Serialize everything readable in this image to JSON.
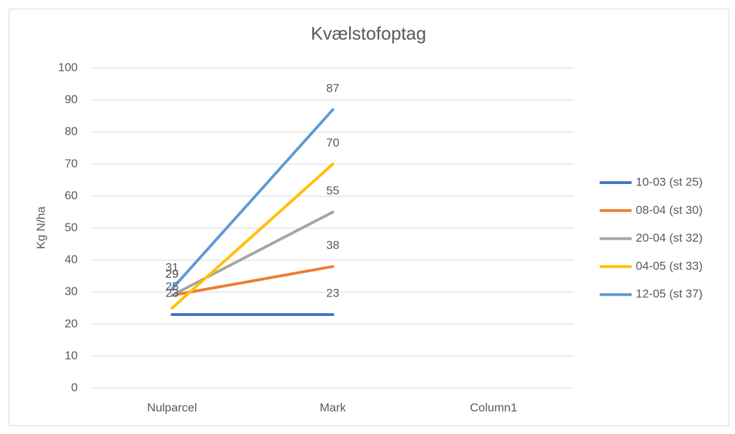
{
  "chart_data": {
    "type": "line",
    "title": "Kvælstofoptag",
    "y_label": "Kg N/ha",
    "categories": [
      "Nulparcel",
      "Mark",
      "Column1"
    ],
    "series": [
      {
        "name": "10-03 (st 25)",
        "color": "#4472c4",
        "values": [
          23,
          23,
          null
        ]
      },
      {
        "name": "08-04 (st 30)",
        "color": "#ed7d31",
        "values": [
          29,
          38,
          null
        ]
      },
      {
        "name": "20-04 (st 32)",
        "color": "#a5a5a5",
        "values": [
          29,
          55,
          null
        ]
      },
      {
        "name": "04-05 (st 33)",
        "color": "#ffc000",
        "values": [
          25,
          70,
          null
        ]
      },
      {
        "name": "12-05 (st 37)",
        "color": "#5b9bd5",
        "values": [
          31,
          87,
          null
        ]
      }
    ],
    "ylim": [
      0,
      100
    ],
    "yticks": [
      0,
      10,
      20,
      30,
      40,
      50,
      60,
      70,
      80,
      90,
      100
    ],
    "grid": true,
    "legend": "right",
    "data_labels": true
  }
}
